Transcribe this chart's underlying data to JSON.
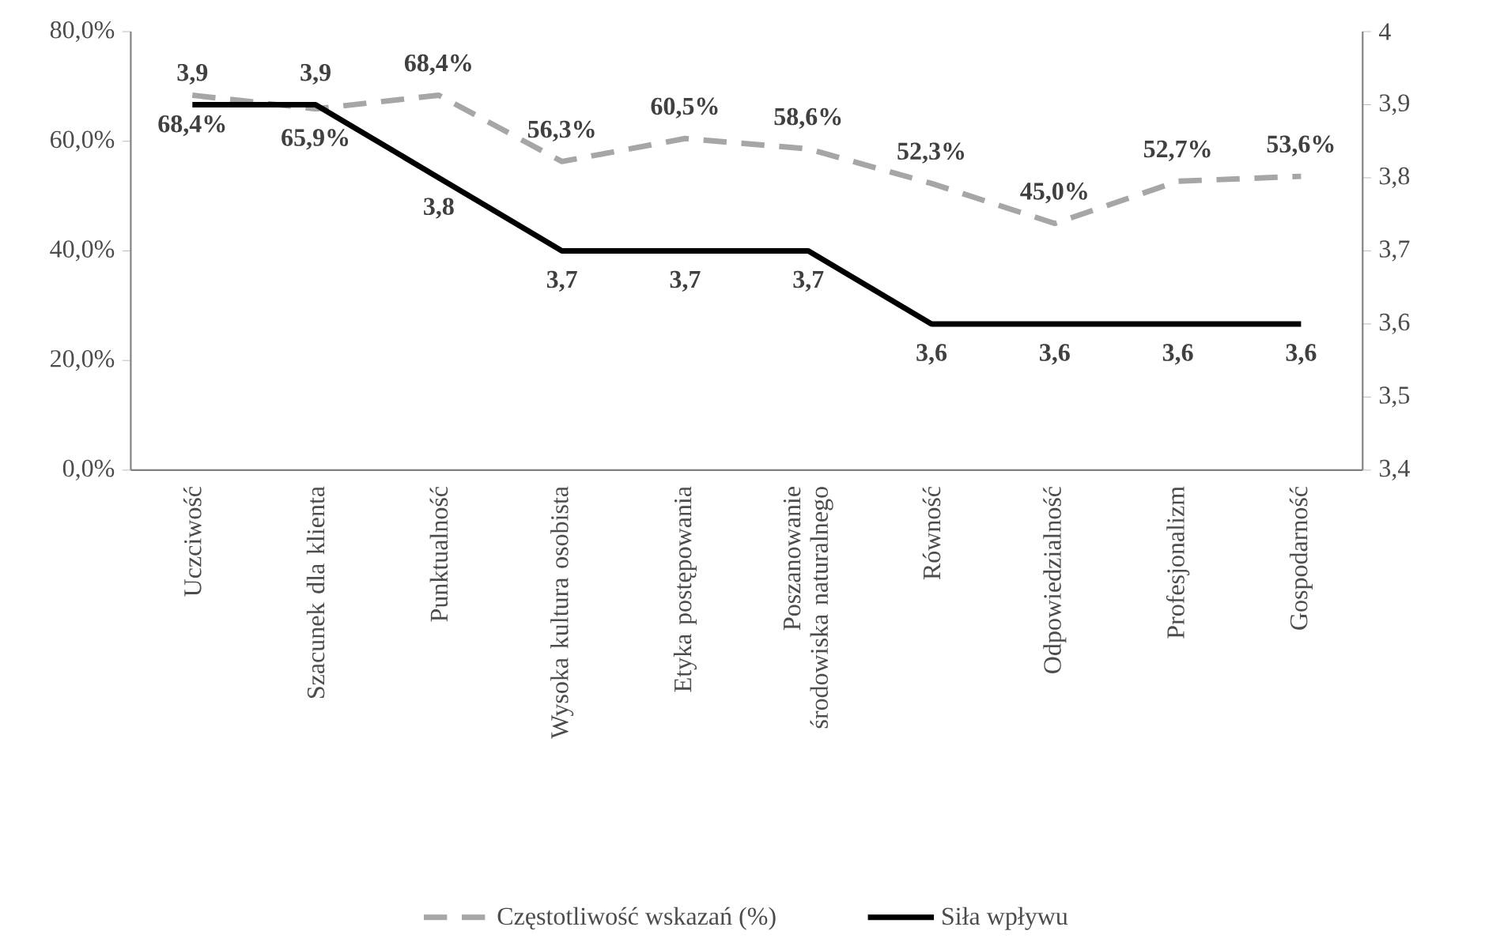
{
  "chart_data": {
    "type": "line",
    "categories": [
      "Uczciwość",
      "Szacunek dla klienta",
      "Punktualność",
      "Wysoka kultura osobista",
      "Etyka postępowania",
      "Poszanowanie środowiska naturalnego",
      "Równość",
      "Odpowiedzialność",
      "Profesjonalizm",
      "Gospodarność"
    ],
    "series": [
      {
        "name": "Częstotliwość wskazań (%)",
        "color": "#a6a6a6",
        "line_style": "dashed",
        "values": [
          68.4,
          65.9,
          68.4,
          56.3,
          60.5,
          58.6,
          52.3,
          45.0,
          52.7,
          53.6
        ],
        "value_labels": [
          "68,4%",
          "65,9%",
          "68,4%",
          "56,3%",
          "60,5%",
          "58,6%",
          "52,3%",
          "45,0%",
          "52,7%",
          "53,6%"
        ]
      },
      {
        "name": "Siła wpływu",
        "color": "#000000",
        "line_style": "solid",
        "axis": "y2",
        "values": [
          3.9,
          3.9,
          3.8,
          3.7,
          3.7,
          3.7,
          3.6,
          3.6,
          3.6,
          3.6
        ],
        "value_labels": [
          "3,9",
          "3,9",
          "3,8",
          "3,7",
          "3,7",
          "3,7",
          "3,6",
          "3,6",
          "3,6",
          "3,6"
        ]
      }
    ],
    "ylim": [
      0,
      80
    ],
    "yticks": [
      {
        "value": 0,
        "label": "0,0%"
      },
      {
        "value": 20,
        "label": "20,0%"
      },
      {
        "value": 40,
        "label": "40,0%"
      },
      {
        "value": 60,
        "label": "60,0%"
      },
      {
        "value": 80,
        "label": "80,0%"
      }
    ],
    "y2lim": [
      3.4,
      4
    ],
    "y2ticks": [
      {
        "value": 3.4,
        "label": "3,4"
      },
      {
        "value": 3.5,
        "label": "3,5"
      },
      {
        "value": 3.6,
        "label": "3,6"
      },
      {
        "value": 3.7,
        "label": "3,7"
      },
      {
        "value": 3.8,
        "label": "3,8"
      },
      {
        "value": 3.9,
        "label": "3,9"
      },
      {
        "value": 4,
        "label": "4"
      }
    ],
    "legend": "bottom",
    "grid": false
  }
}
